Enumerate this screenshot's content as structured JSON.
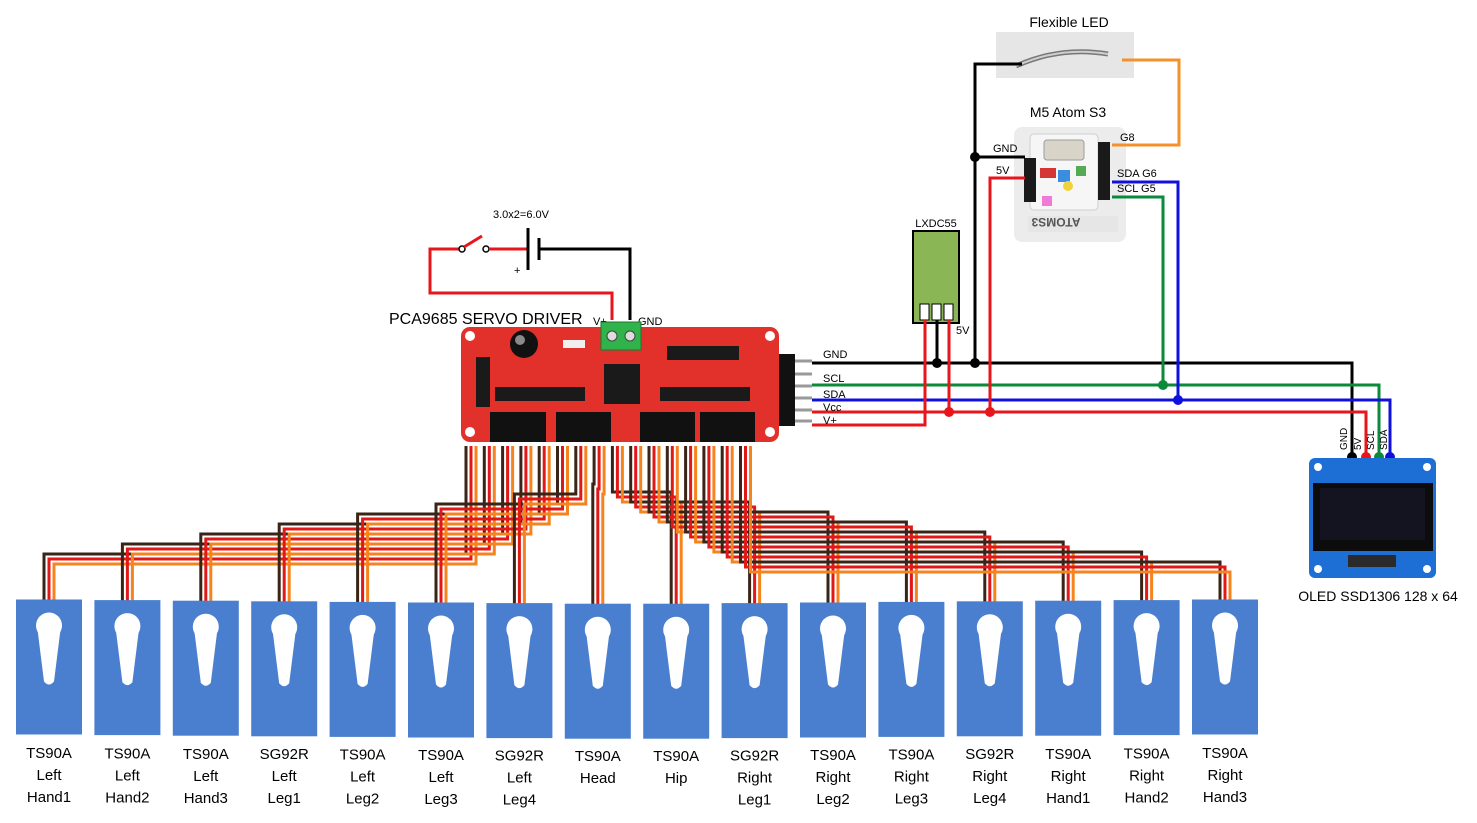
{
  "labels": {
    "flexible_led": "Flexible LED",
    "m5_atom": "M5 Atom S3",
    "atom_g8": "G8",
    "atom_gnd": "GND",
    "atom_5v": "5V",
    "atom_sda": "SDA G6",
    "atom_scl": "SCL G5",
    "lxdc": "LXDC55",
    "lxdc_5v": "5V",
    "battery": "3.0x2=6.0V",
    "battery_plus": "+",
    "pca": "PCA9685 SERVO DRIVER",
    "pca_vplus": "V+",
    "pca_gnd": "GND",
    "bus_gnd": "GND",
    "bus_scl": "SCL",
    "bus_sda": "SDA",
    "bus_vcc": "Vcc",
    "bus_vplus": "V+",
    "oled_pin_gnd": "GND",
    "oled_pin_5v": "5V",
    "oled_pin_scl": "SCL",
    "oled_pin_sda": "SDA",
    "oled": "OLED SSD1306 128 x 64"
  },
  "servos": [
    {
      "type": "TS90A",
      "side": "Left",
      "part": "Hand1"
    },
    {
      "type": "TS90A",
      "side": "Left",
      "part": "Hand2"
    },
    {
      "type": "TS90A",
      "side": "Left",
      "part": "Hand3"
    },
    {
      "type": "SG92R",
      "side": "Left",
      "part": "Leg1"
    },
    {
      "type": "TS90A",
      "side": "Left",
      "part": "Leg2"
    },
    {
      "type": "TS90A",
      "side": "Left",
      "part": "Leg3"
    },
    {
      "type": "SG92R",
      "side": "Left",
      "part": "Leg4"
    },
    {
      "type": "TS90A",
      "side": "",
      "part": "Head"
    },
    {
      "type": "TS90A",
      "side": "",
      "part": "Hip"
    },
    {
      "type": "SG92R",
      "side": "Right",
      "part": "Leg1"
    },
    {
      "type": "TS90A",
      "side": "Right",
      "part": "Leg2"
    },
    {
      "type": "TS90A",
      "side": "Right",
      "part": "Leg3"
    },
    {
      "type": "SG92R",
      "side": "Right",
      "part": "Leg4"
    },
    {
      "type": "TS90A",
      "side": "Right",
      "part": "Hand1"
    },
    {
      "type": "TS90A",
      "side": "Right",
      "part": "Hand2"
    },
    {
      "type": "TS90A",
      "side": "Right",
      "part": "Hand3"
    }
  ],
  "colors": {
    "gnd": "#000000",
    "power": "#e8151b",
    "scl": "#0a8a3a",
    "sda": "#1010dd",
    "led_signal": "#f4912a",
    "servo_body": "#4a7fd0",
    "servo_wire_brown": "#3a2418",
    "servo_wire_red": "#e01818",
    "servo_wire_orange": "#f5841f",
    "pca_board": "#e2302b",
    "lxdc_board": "#8bb655",
    "oled_board": "#1d6fd6"
  }
}
